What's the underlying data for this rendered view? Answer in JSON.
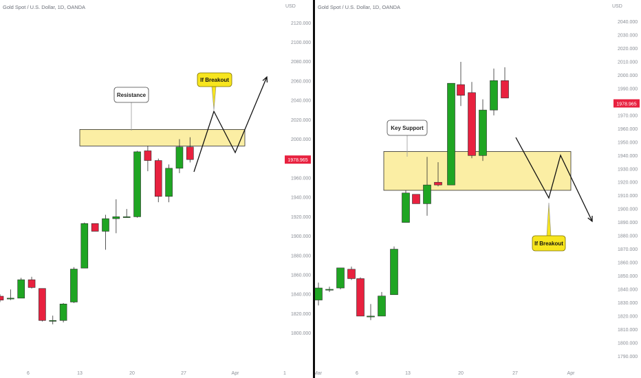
{
  "colors": {
    "up": "#1fa523",
    "down": "#e8213f",
    "zone_fill": "#fbeea4",
    "zone_stroke": "#2b2b2b",
    "callout_yellow": "#f7e51e",
    "price_label_bg": "#e8213f",
    "axis_text": "#8a8e96"
  },
  "chart_data": [
    {
      "type": "candlestick",
      "title": "Gold Spot / U.S. Dollar, 1D, OANDA",
      "currency": "USD",
      "y_ticks": [
        "2120.000",
        "2100.000",
        "2080.000",
        "2060.000",
        "2040.000",
        "2020.000",
        "2000.000",
        "1980.000",
        "1960.000",
        "1940.000",
        "1920.000",
        "1900.000",
        "1880.000",
        "1860.000",
        "1840.000",
        "1820.000",
        "1800.000"
      ],
      "ylim": [
        1782,
        2128
      ],
      "x_ticks": [
        "6",
        "13",
        "20",
        "27",
        "Apr",
        "1"
      ],
      "last_price": "1978.965",
      "candles": [
        {
          "o": 1838,
          "h": 1840,
          "l": 1832,
          "c": 1834
        },
        {
          "o": 1836,
          "h": 1845,
          "l": 1834,
          "c": 1836
        },
        {
          "o": 1836,
          "h": 1857,
          "l": 1836,
          "c": 1855
        },
        {
          "o": 1855,
          "h": 1858,
          "l": 1846,
          "c": 1847
        },
        {
          "o": 1846,
          "h": 1846,
          "l": 1812,
          "c": 1813
        },
        {
          "o": 1813,
          "h": 1818,
          "l": 1809,
          "c": 1813
        },
        {
          "o": 1813,
          "h": 1831,
          "l": 1811,
          "c": 1830
        },
        {
          "o": 1832,
          "h": 1868,
          "l": 1831,
          "c": 1866
        },
        {
          "o": 1867,
          "h": 1914,
          "l": 1867,
          "c": 1913
        },
        {
          "o": 1913,
          "h": 1913,
          "l": 1905,
          "c": 1905
        },
        {
          "o": 1905,
          "h": 1922,
          "l": 1886,
          "c": 1918
        },
        {
          "o": 1918,
          "h": 1938,
          "l": 1903,
          "c": 1920
        },
        {
          "o": 1920,
          "h": 1928,
          "l": 1919,
          "c": 1920
        },
        {
          "o": 1920,
          "h": 1988,
          "l": 1919,
          "c": 1987
        },
        {
          "o": 1988,
          "h": 1993,
          "l": 1967,
          "c": 1978
        },
        {
          "o": 1978,
          "h": 1980,
          "l": 1935,
          "c": 1941
        },
        {
          "o": 1941,
          "h": 1974,
          "l": 1935,
          "c": 1970
        },
        {
          "o": 1970,
          "h": 2000,
          "l": 1965,
          "c": 1992
        },
        {
          "o": 1992,
          "h": 2002,
          "l": 1976,
          "c": 1979
        }
      ],
      "annotations": {
        "zone_label": "Resistance",
        "callout": "If Breakout",
        "zone": [
          1993,
          2010
        ]
      }
    },
    {
      "type": "candlestick",
      "title": "Gold Spot / U.S. Dollar, 1D, OANDA",
      "currency": "USD",
      "y_ticks": [
        "2040.000",
        "2030.000",
        "2020.000",
        "2010.000",
        "2000.000",
        "1990.000",
        "1980.000",
        "1970.000",
        "1960.000",
        "1950.000",
        "1940.000",
        "1930.000",
        "1920.000",
        "1910.000",
        "1900.000",
        "1890.000",
        "1880.000",
        "1870.000",
        "1860.000",
        "1850.000",
        "1840.000",
        "1830.000",
        "1820.000",
        "1810.000",
        "1800.000",
        "1790.000"
      ],
      "ylim": [
        1784,
        2047
      ],
      "x_ticks": [
        "Mar",
        "6",
        "13",
        "20",
        "27",
        "Apr"
      ],
      "last_price": "1978.965",
      "candles": [
        {
          "o": 1832,
          "h": 1845,
          "l": 1828,
          "c": 1841
        },
        {
          "o": 1840,
          "h": 1842,
          "l": 1838,
          "c": 1840
        },
        {
          "o": 1841,
          "h": 1856,
          "l": 1840,
          "c": 1856
        },
        {
          "o": 1855,
          "h": 1857,
          "l": 1847,
          "c": 1848
        },
        {
          "o": 1848,
          "h": 1849,
          "l": 1820,
          "c": 1820
        },
        {
          "o": 1820,
          "h": 1829,
          "l": 1817,
          "c": 1820
        },
        {
          "o": 1820,
          "h": 1838,
          "l": 1820,
          "c": 1835
        },
        {
          "o": 1836,
          "h": 1872,
          "l": 1836,
          "c": 1870
        },
        {
          "o": 1890,
          "h": 1914,
          "l": 1890,
          "c": 1912
        },
        {
          "o": 1911,
          "h": 1911,
          "l": 1904,
          "c": 1904
        },
        {
          "o": 1904,
          "h": 1939,
          "l": 1895,
          "c": 1918
        },
        {
          "o": 1920,
          "h": 1935,
          "l": 1917,
          "c": 1918
        },
        {
          "o": 1918,
          "h": 1994,
          "l": 1918,
          "c": 1994
        },
        {
          "o": 1993,
          "h": 2010,
          "l": 1977,
          "c": 1985
        },
        {
          "o": 1987,
          "h": 1995,
          "l": 1938,
          "c": 1940
        },
        {
          "o": 1940,
          "h": 1982,
          "l": 1936,
          "c": 1974
        },
        {
          "o": 1974,
          "h": 2005,
          "l": 1970,
          "c": 1996
        },
        {
          "o": 1996,
          "h": 2006,
          "l": 1983,
          "c": 1983
        }
      ],
      "annotations": {
        "zone_label": "Key Support",
        "callout": "If Breakout",
        "zone": [
          1914,
          1943
        ]
      }
    }
  ]
}
